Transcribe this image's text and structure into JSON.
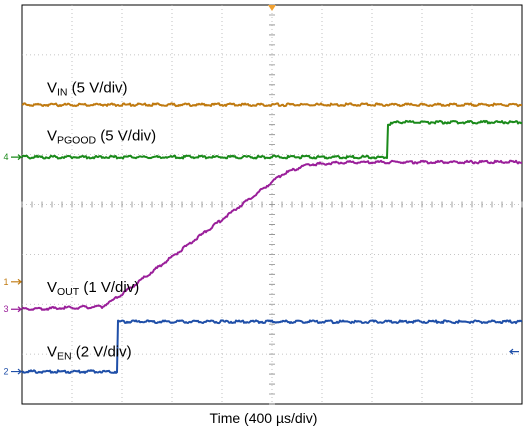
{
  "chart_data": {
    "type": "line",
    "xlabel": "Time (400 µs/div)",
    "x_divisions": 10,
    "y_divisions": 8,
    "x_unit": "div",
    "grid": true,
    "series": [
      {
        "id": "vin",
        "label_main": "V",
        "label_sub": "IN",
        "label_scale": " (5 V/div)",
        "color": "#c07a10",
        "marker": "",
        "x": [
          0,
          10
        ],
        "y": [
          6.0,
          6.0
        ]
      },
      {
        "id": "vpgood",
        "label_main": "V",
        "label_sub": "PGOOD",
        "label_scale": " (5 V/div)",
        "color": "#1a8a1a",
        "marker": "4",
        "x": [
          0,
          7.3,
          7.32,
          7.5,
          10
        ],
        "y": [
          4.95,
          4.95,
          5.6,
          5.65,
          5.65
        ]
      },
      {
        "id": "vout",
        "label_main": "V",
        "label_sub": "OUT",
        "label_scale": " (1 V/div)",
        "color": "#9a1f9a",
        "marker": "3",
        "x": [
          0,
          1.6,
          2.0,
          5.2,
          5.7,
          6.5,
          10
        ],
        "y": [
          1.9,
          1.95,
          2.2,
          4.6,
          4.8,
          4.85,
          4.85
        ]
      },
      {
        "id": "ven",
        "label_main": "V",
        "label_sub": "EN",
        "label_scale": " (2 V/div)",
        "color": "#1f4fa8",
        "marker": "2",
        "x": [
          0,
          1.9,
          1.92,
          10
        ],
        "y": [
          0.65,
          0.65,
          1.65,
          1.65
        ]
      }
    ],
    "markers": [
      {
        "text": "1",
        "color": "#c07a10",
        "y": 2.45
      }
    ]
  }
}
